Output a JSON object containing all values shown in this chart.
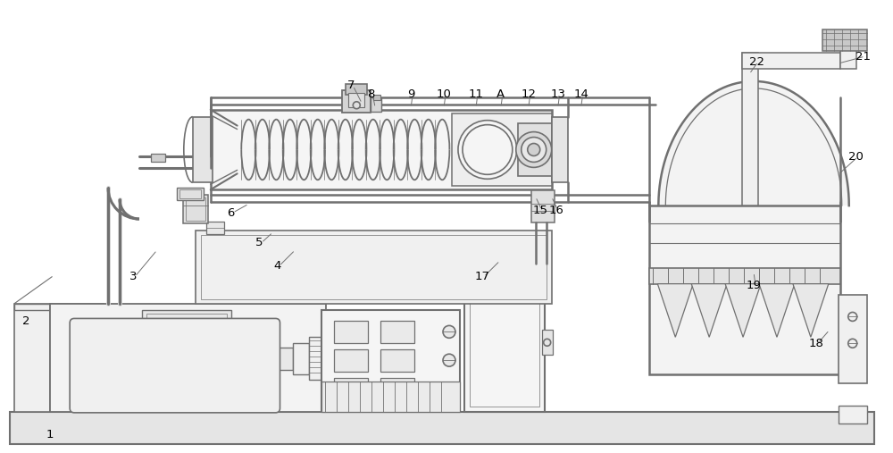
{
  "bg": "#ffffff",
  "lc": "#707070",
  "lw": 1.2,
  "fw": 10.0,
  "fh": 5.07,
  "dpi": 100,
  "labels": [
    [
      "1",
      55,
      488,
      null,
      null
    ],
    [
      "2",
      28,
      360,
      null,
      null
    ],
    [
      "3",
      148,
      310,
      175,
      280
    ],
    [
      "4",
      310,
      298,
      330,
      280
    ],
    [
      "5",
      290,
      272,
      305,
      260
    ],
    [
      "6",
      258,
      238,
      278,
      228
    ],
    [
      "7",
      393,
      95,
      405,
      115
    ],
    [
      "8",
      415,
      105,
      420,
      120
    ],
    [
      "9",
      460,
      105,
      460,
      120
    ],
    [
      "10",
      497,
      105,
      497,
      120
    ],
    [
      "11",
      533,
      105,
      533,
      120
    ],
    [
      "A",
      561,
      105,
      561,
      120
    ],
    [
      "12",
      592,
      105,
      592,
      120
    ],
    [
      "13",
      625,
      105,
      625,
      120
    ],
    [
      "14",
      651,
      105,
      651,
      120
    ],
    [
      "15",
      605,
      235,
      600,
      220
    ],
    [
      "16",
      623,
      235,
      618,
      220
    ],
    [
      "17",
      540,
      310,
      560,
      292
    ],
    [
      "18",
      915,
      385,
      930,
      370
    ],
    [
      "19",
      845,
      320,
      845,
      305
    ],
    [
      "20",
      960,
      175,
      940,
      195
    ],
    [
      "21",
      968,
      62,
      940,
      70
    ],
    [
      "22",
      848,
      68,
      840,
      82
    ]
  ]
}
